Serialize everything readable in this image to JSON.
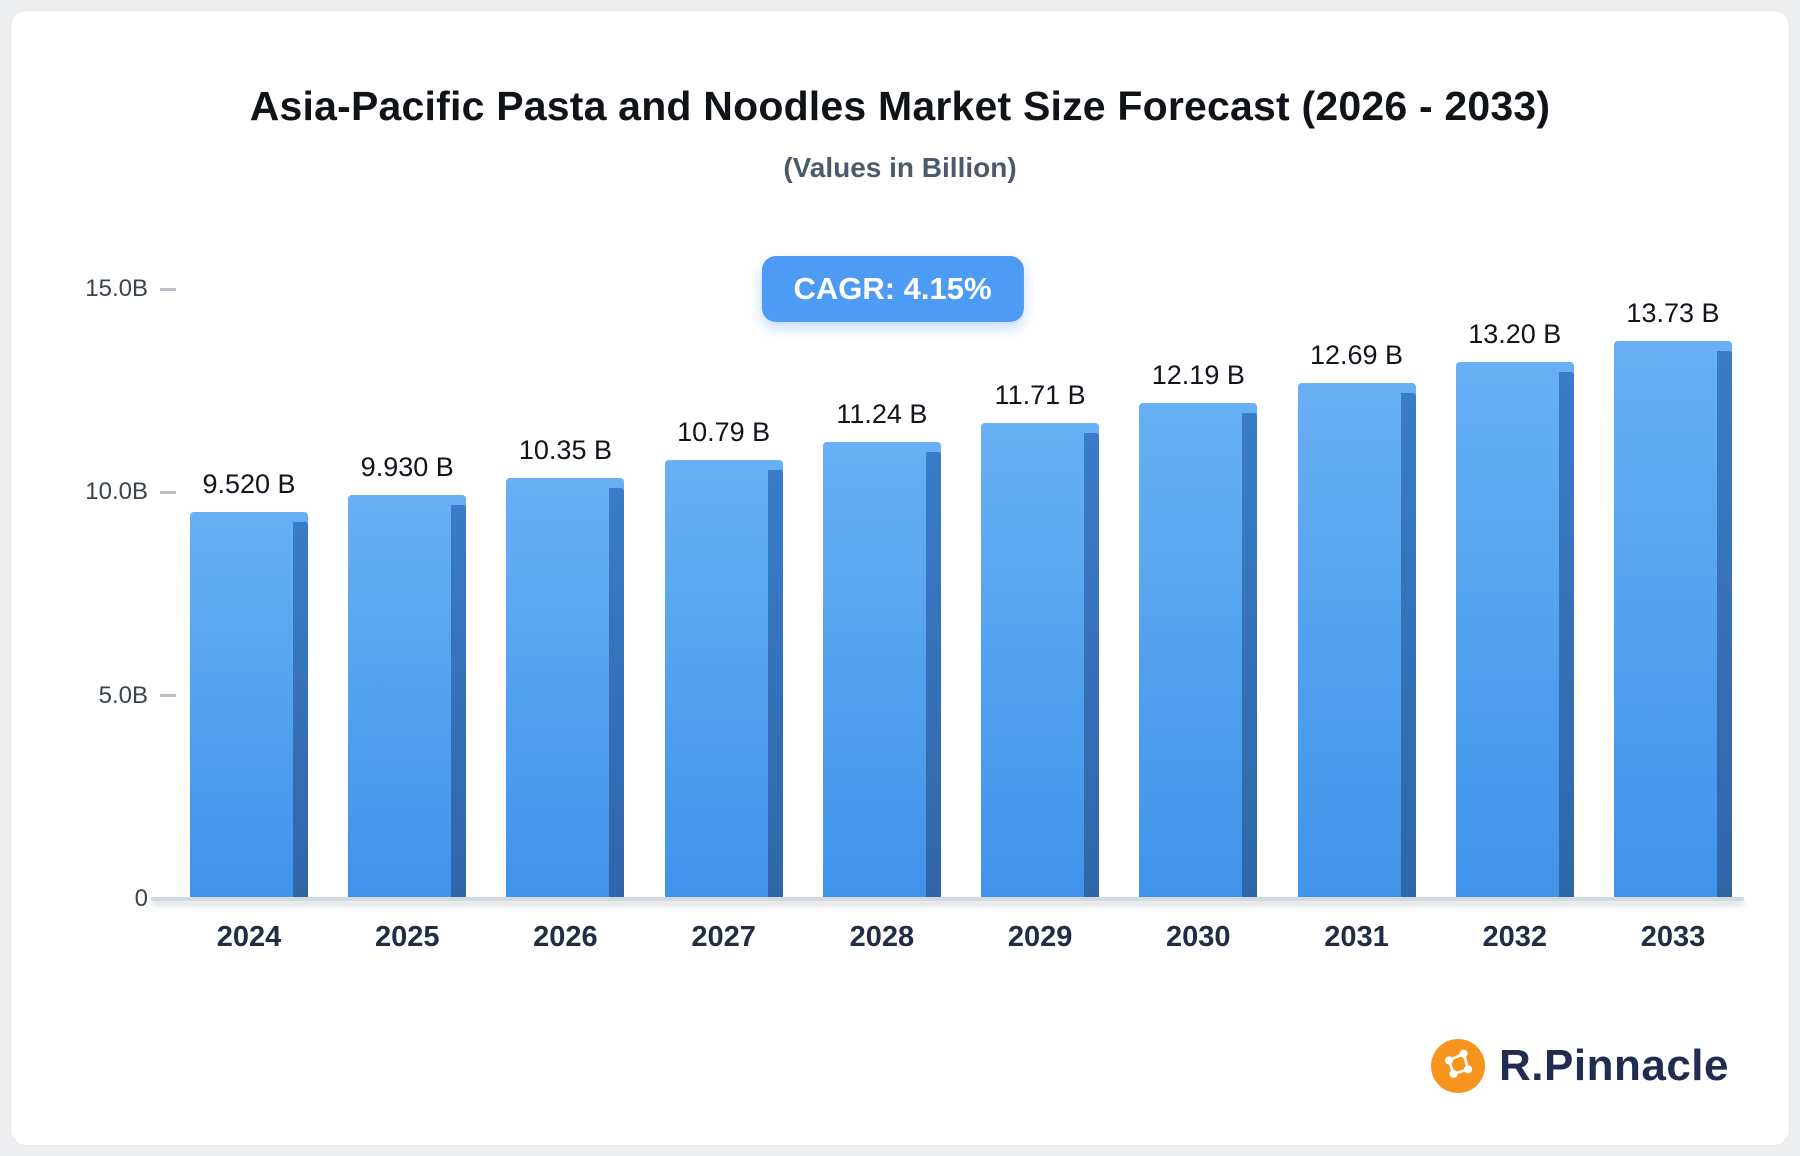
{
  "header": {
    "title": "Asia-Pacific Pasta and Noodles Market Size Forecast (2026 - 2033)",
    "subtitle": "(Values in Billion)"
  },
  "badge": {
    "label": "CAGR: 4.15%"
  },
  "chart_data": {
    "type": "bar",
    "title": "Asia-Pacific Pasta and Noodles Market Size Forecast (2026 - 2033)",
    "subtitle": "(Values in Billion)",
    "categories": [
      "2024",
      "2025",
      "2026",
      "2027",
      "2028",
      "2029",
      "2030",
      "2031",
      "2032",
      "2033"
    ],
    "values": [
      9.52,
      9.93,
      10.35,
      10.79,
      11.24,
      11.71,
      12.19,
      12.69,
      13.2,
      13.73
    ],
    "value_labels": [
      "9.520 B",
      "9.930 B",
      "10.35 B",
      "10.79 B",
      "11.24 B",
      "11.71 B",
      "12.19 B",
      "12.69 B",
      "13.20 B",
      "13.73 B"
    ],
    "xlabel": "",
    "ylabel": "",
    "ylim": [
      0,
      15
    ],
    "yticks": [
      {
        "value": 15,
        "label": "15.0B"
      },
      {
        "value": 10,
        "label": "10.0B"
      },
      {
        "value": 5,
        "label": "5.0B"
      },
      {
        "value": 0,
        "label": "0"
      }
    ],
    "grid": false,
    "legend": false,
    "annotations": [
      "CAGR: 4.15%"
    ]
  },
  "brand": {
    "name": "R.Pinnacle"
  },
  "colors": {
    "accent": "#4d9bf5",
    "bar_top": "#68b0f4",
    "bar_bottom": "#3f93e9",
    "bar_side_top": "#3a7cc9",
    "bar_side_bottom": "#2f66a8",
    "logo_orange": "#f7941d",
    "logo_navy": "#222c52",
    "baseline": "#d3d8de"
  }
}
